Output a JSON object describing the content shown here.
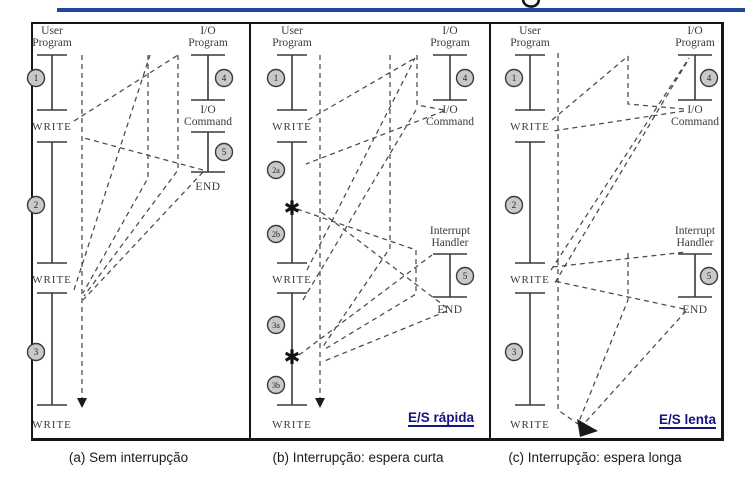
{
  "figure": {
    "colors": {
      "accent_rule": "#24479a",
      "emphasis_text": "#15157e"
    },
    "panels": [
      {
        "id": "a",
        "caption": "(a) Sem interrupção",
        "footnote": "",
        "user_program": {
          "title": [
            "User",
            "Program"
          ],
          "write_label": "WRITE",
          "segments": [
            [
              "1"
            ],
            [
              "2"
            ],
            [
              "3"
            ]
          ]
        },
        "io_program": {
          "title": [
            "I/O",
            "Program"
          ],
          "step": "4",
          "command": [
            "I/O",
            "Command"
          ],
          "step_after_command": "5",
          "end_label": "END"
        },
        "interrupt_handler": null
      },
      {
        "id": "b",
        "caption": "(b) Interrupção: espera curta",
        "footnote": "E/S rápida",
        "user_program": {
          "title": [
            "User",
            "Program"
          ],
          "write_label": "WRITE",
          "asterisk": "✱",
          "segments": [
            [
              "1"
            ],
            [
              "2a",
              "✱",
              "2b"
            ],
            [
              "3a",
              "✱",
              "3b"
            ]
          ]
        },
        "io_program": {
          "title": [
            "I/O",
            "Program"
          ],
          "step": "4",
          "command": [
            "I/O",
            "Command"
          ]
        },
        "interrupt_handler": {
          "title": [
            "Interrupt",
            "Handler"
          ],
          "step": "5",
          "end_label": "END"
        }
      },
      {
        "id": "c",
        "caption": "(c) Interrupção: espera longa",
        "footnote": "E/S lenta",
        "user_program": {
          "title": [
            "User",
            "Program"
          ],
          "write_label": "WRITE",
          "segments": [
            [
              "1"
            ],
            [
              "2"
            ],
            [
              "3"
            ]
          ]
        },
        "io_program": {
          "title": [
            "I/O",
            "Program"
          ],
          "step": "4",
          "command": [
            "I/O",
            "Command"
          ]
        },
        "interrupt_handler": {
          "title": [
            "Interrupt",
            "Handler"
          ],
          "step": "5",
          "end_label": "END"
        }
      }
    ]
  }
}
